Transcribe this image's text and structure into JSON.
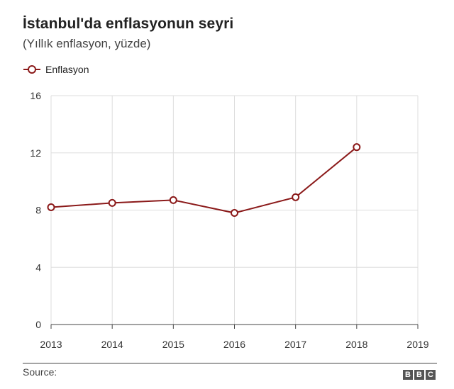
{
  "header": {
    "title": "İstanbul'da enflasyonun seyri",
    "subtitle": "(Yıllık enflasyon, yüzde)"
  },
  "footer": {
    "source_label": "Source:",
    "logo_letters": [
      "B",
      "B",
      "C"
    ]
  },
  "colors": {
    "series": "#8b1a1a",
    "grid": "#dddddd",
    "axis": "#444444"
  },
  "chart_data": {
    "type": "line",
    "title": "İstanbul'da enflasyonun seyri",
    "subtitle": "(Yıllık enflasyon, yüzde)",
    "xlabel": "",
    "ylabel": "",
    "x_ticks": [
      "2013",
      "2014",
      "2015",
      "2016",
      "2017",
      "2018",
      "2019"
    ],
    "y_ticks": [
      "0",
      "4",
      "8",
      "12",
      "16"
    ],
    "ylim": [
      0,
      16
    ],
    "xlim": [
      2013,
      2019
    ],
    "grid": true,
    "legend_position": "top-left",
    "series": [
      {
        "name": "Enflasyon",
        "x": [
          2013,
          2014,
          2015,
          2016,
          2017,
          2018
        ],
        "values": [
          8.2,
          8.5,
          8.7,
          7.8,
          8.9,
          12.4
        ]
      }
    ]
  }
}
